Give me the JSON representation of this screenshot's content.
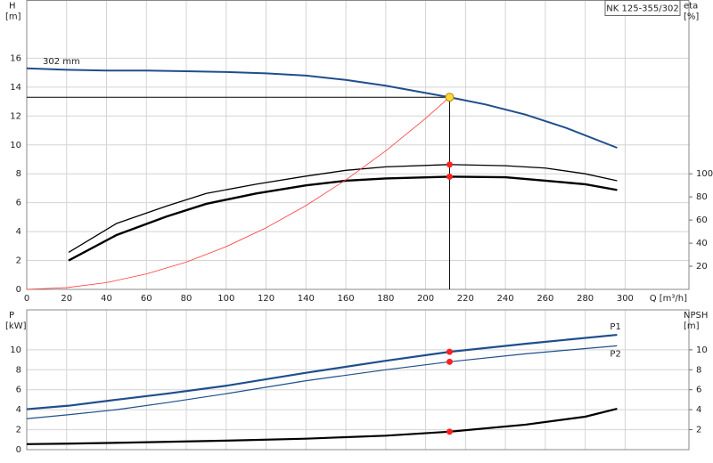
{
  "chart_data": [
    {
      "type": "line",
      "title": "NK 125-355/302",
      "ylabel": "H",
      "yunit": "[m]",
      "y2label": "eta",
      "y2unit": "[%]",
      "xlabel": "Q [m³/h]",
      "xlim": [
        0,
        332
      ],
      "xticks": [
        0,
        20,
        40,
        60,
        80,
        100,
        120,
        140,
        160,
        180,
        200,
        220,
        240,
        260,
        280,
        300
      ],
      "ylim": [
        0,
        20
      ],
      "yticks": [
        0,
        2,
        4,
        6,
        8,
        10,
        12,
        14,
        16
      ],
      "y2lim": [
        0,
        250
      ],
      "y2ticks": [
        20,
        40,
        60,
        80,
        100
      ],
      "grid": true,
      "duty_point": {
        "x": 212,
        "y": 13.3,
        "color": "#ffd83a"
      },
      "series": [
        {
          "name": "302 mm",
          "color": "#1f4e8c",
          "line_width": 2,
          "x": [
            0,
            20,
            40,
            60,
            80,
            100,
            120,
            140,
            160,
            180,
            200,
            212,
            230,
            250,
            270,
            296
          ],
          "values": [
            15.3,
            15.2,
            15.15,
            15.15,
            15.1,
            15.05,
            14.95,
            14.8,
            14.5,
            14.1,
            13.6,
            13.3,
            12.8,
            12.1,
            11.2,
            9.8
          ]
        },
        {
          "color": "#000000",
          "line_width": 1.3,
          "axis": "y2",
          "marker_color": "#ff2020",
          "x": [
            21,
            45,
            70,
            90,
            115,
            140,
            160,
            180,
            212,
            240,
            260,
            280,
            296
          ],
          "values": [
            32,
            57,
            72,
            83,
            91,
            98,
            103,
            106,
            108,
            107,
            105,
            100,
            94
          ]
        },
        {
          "color": "#000000",
          "line_width": 2.4,
          "axis": "y2",
          "marker_color": "#ff2020",
          "x": [
            21,
            45,
            70,
            90,
            115,
            140,
            160,
            180,
            212,
            240,
            260,
            280,
            296
          ],
          "values": [
            25,
            47,
            63,
            74,
            83,
            90,
            94,
            96,
            97.5,
            97,
            94,
            91,
            86
          ]
        },
        {
          "color": "#ff3b3b",
          "line_width": 0.8,
          "x": [
            0,
            20,
            40,
            60,
            80,
            100,
            120,
            140,
            160,
            180,
            200,
            212
          ],
          "values": [
            0,
            0.12,
            0.47,
            1.07,
            1.89,
            2.96,
            4.26,
            5.8,
            7.58,
            9.59,
            11.84,
            13.3
          ]
        }
      ]
    },
    {
      "type": "line",
      "ylabel": "P",
      "yunit": "[kW]",
      "y2label": "NPSH",
      "y2unit": "[m]",
      "xlim": [
        0,
        332
      ],
      "ylim": [
        0,
        14
      ],
      "yticks": [
        0,
        2,
        4,
        6,
        8,
        10
      ],
      "y2lim": [
        0,
        14
      ],
      "y2ticks": [
        2,
        4,
        6,
        8,
        10
      ],
      "grid": true,
      "duty_x": 212,
      "series": [
        {
          "name": "P1",
          "color": "#1f4e8c",
          "line_width": 2.2,
          "marker_color": "#ff2020",
          "x": [
            0,
            21,
            45,
            70,
            100,
            140,
            180,
            212,
            250,
            296
          ],
          "values": [
            4.05,
            4.4,
            5.0,
            5.6,
            6.4,
            7.7,
            8.9,
            9.8,
            10.6,
            11.5
          ]
        },
        {
          "name": "P2",
          "color": "#1f4e8c",
          "line_width": 1.2,
          "marker_color": "#ff2020",
          "x": [
            0,
            21,
            45,
            70,
            100,
            140,
            180,
            212,
            250,
            296
          ],
          "values": [
            3.1,
            3.5,
            4.0,
            4.7,
            5.6,
            6.9,
            8.0,
            8.8,
            9.6,
            10.4
          ]
        },
        {
          "color": "#000000",
          "line_width": 2.2,
          "axis": "y2",
          "marker_color": "#ff2020",
          "x": [
            0,
            21,
            50,
            100,
            140,
            180,
            212,
            250,
            280,
            296
          ],
          "values": [
            0.55,
            0.6,
            0.7,
            0.9,
            1.1,
            1.4,
            1.8,
            2.5,
            3.3,
            4.1
          ]
        }
      ]
    }
  ]
}
